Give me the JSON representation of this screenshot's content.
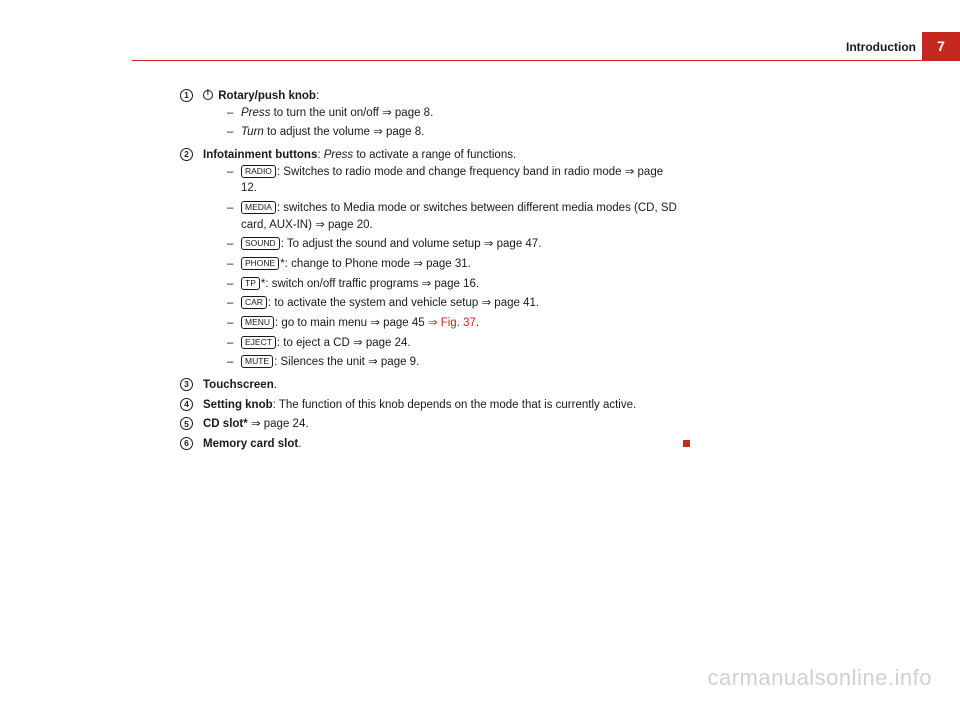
{
  "header": {
    "section_title": "Introduction",
    "page_number": "7"
  },
  "items": [
    {
      "num": "1",
      "lead_icon": "power",
      "title": "Rotary/push knob",
      "title_suffix": ":",
      "subs": [
        {
          "pre_italic": "Press",
          "text": " to turn the unit on/off ",
          "page_ref": "⇒ page 8."
        },
        {
          "pre_italic": "Turn",
          "text": " to adjust the volume ",
          "page_ref": "⇒ page 8."
        }
      ]
    },
    {
      "num": "2",
      "title": "Infotainment buttons",
      "title_suffix": ": ",
      "post_italic": "Press",
      "post_text": " to activate a range of functions.",
      "subs": [
        {
          "key": "RADIO",
          "text": ": Switches to radio mode and change frequency band in radio mode ",
          "page_ref": "⇒ page 12."
        },
        {
          "key": "MEDIA",
          "text": ": switches to Media mode or switches between different media modes (CD, SD card, AUX-IN) ",
          "page_ref": "⇒ page 20."
        },
        {
          "key": "SOUND",
          "text": ": To adjust the sound and volume setup ",
          "page_ref": "⇒ page 47."
        },
        {
          "key": "PHONE",
          "after_key": "*",
          "text": ": change to Phone mode ",
          "page_ref": "⇒ page 31."
        },
        {
          "key": "TP",
          "after_key": "*",
          "text": ": switch on/off traffic programs ",
          "page_ref": "⇒ page 16."
        },
        {
          "key": "CAR",
          "text": ": to activate the system and vehicle setup ",
          "page_ref": "⇒ page 41."
        },
        {
          "key": "MENU",
          "text": ": go to main menu ",
          "page_ref": "⇒ page 45 ",
          "fig_ref": "⇒ Fig. 37",
          "tail": "."
        },
        {
          "key": "EJECT",
          "text": ": to eject a CD ",
          "page_ref": "⇒ page 24."
        },
        {
          "key": "MUTE",
          "text": ": Silences the unit ",
          "page_ref": "⇒ page 9."
        }
      ]
    },
    {
      "num": "3",
      "title": "Touchscreen",
      "title_suffix": "."
    },
    {
      "num": "4",
      "title": "Setting knob",
      "title_suffix": ": ",
      "post_text": "The function of this knob depends on the mode that is currently active."
    },
    {
      "num": "5",
      "title": "CD slot*",
      "title_suffix": " ",
      "page_ref": "⇒ page 24."
    },
    {
      "num": "6",
      "title": "Memory card slot",
      "title_suffix": ".",
      "end_square": true
    }
  ],
  "watermark": "carmanualsonline.info"
}
